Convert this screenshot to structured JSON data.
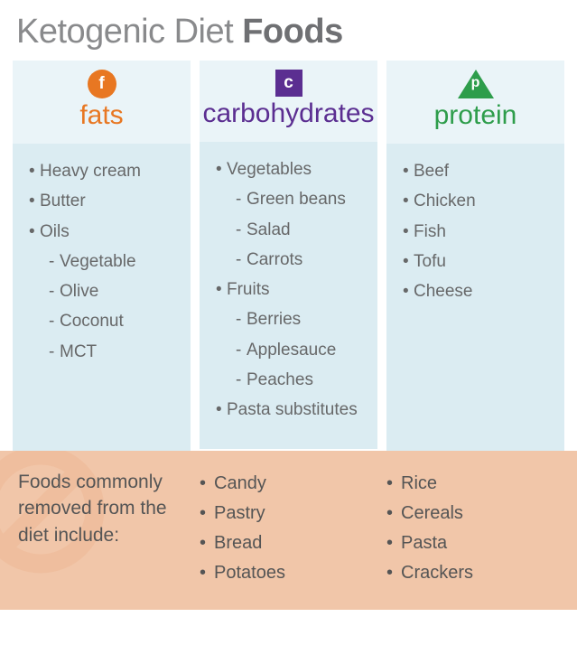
{
  "title_light": "Ketogenic Diet ",
  "title_bold": "Foods",
  "colors": {
    "page_bg": "#ffffff",
    "head_bg": "#eaf4f8",
    "body_bg": "#dbecf2",
    "text": "#676869",
    "removed_bg": "#f1c6a9",
    "no_sign": "#e9a679"
  },
  "categories": [
    {
      "key": "fats",
      "label": "fats",
      "icon_letter": "f",
      "icon_shape": "circle",
      "accent": "#e87722",
      "items": [
        {
          "label": "Heavy cream"
        },
        {
          "label": "Butter"
        },
        {
          "label": "Oils",
          "sub": [
            "Vegetable",
            "Olive",
            "Coconut",
            "MCT"
          ]
        }
      ]
    },
    {
      "key": "carbs",
      "label": "carbohydrates",
      "icon_letter": "c",
      "icon_shape": "square",
      "accent": "#5b2e91",
      "items": [
        {
          "label": "Vegetables",
          "sub": [
            "Green beans",
            "Salad",
            "Carrots"
          ]
        },
        {
          "label": "Fruits",
          "sub": [
            "Berries",
            "Applesauce",
            "Peaches"
          ]
        },
        {
          "label": "Pasta substitutes"
        }
      ]
    },
    {
      "key": "protein",
      "label": "protein",
      "icon_letter": "p",
      "icon_shape": "triangle",
      "accent": "#2e9d4b",
      "items": [
        {
          "label": "Beef"
        },
        {
          "label": "Chicken"
        },
        {
          "label": "Fish"
        },
        {
          "label": "Tofu"
        },
        {
          "label": "Cheese"
        }
      ]
    }
  ],
  "removed": {
    "label": "Foods commonly removed from the diet include:",
    "col1": [
      "Candy",
      "Pastry",
      "Bread",
      "Potatoes"
    ],
    "col2": [
      "Rice",
      "Cereals",
      "Pasta",
      "Crackers"
    ]
  }
}
